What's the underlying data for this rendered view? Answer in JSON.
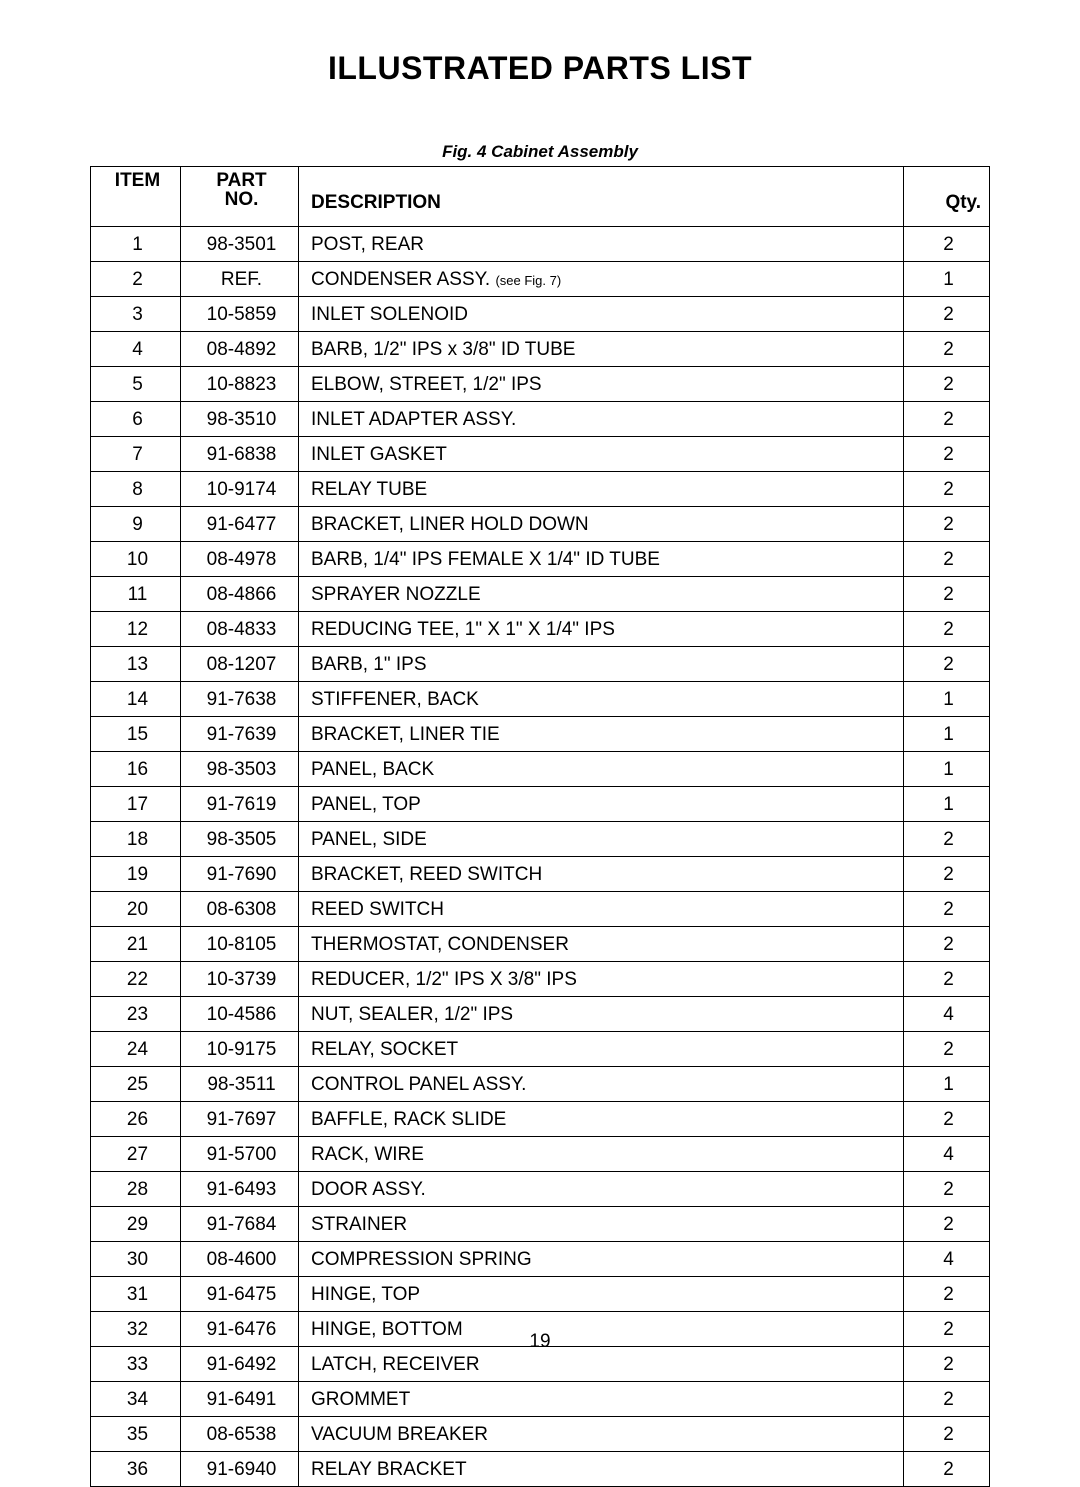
{
  "title": "ILLUSTRATED PARTS LIST",
  "caption": "Fig. 4 Cabinet Assembly",
  "page_number": "19",
  "table": {
    "headers": {
      "item": "ITEM",
      "part_top": "PART",
      "part_bottom": "NO.",
      "description": "DESCRIPTION",
      "qty": "Qty."
    },
    "rows": [
      {
        "item": "1",
        "part": "98-3501",
        "desc": "POST, REAR",
        "qty": "2"
      },
      {
        "item": "2",
        "part": "REF.",
        "desc": "CONDENSER ASSY. ",
        "desc_note": "(see Fig. 7)",
        "qty": "1"
      },
      {
        "item": "3",
        "part": "10-5859",
        "desc": "INLET SOLENOID",
        "qty": "2"
      },
      {
        "item": "4",
        "part": "08-4892",
        "desc": "BARB, 1/2\" IPS x 3/8\" ID TUBE",
        "qty": "2"
      },
      {
        "item": "5",
        "part": "10-8823",
        "desc": "ELBOW, STREET, 1/2\" IPS",
        "qty": "2"
      },
      {
        "item": "6",
        "part": "98-3510",
        "desc": "INLET ADAPTER ASSY.",
        "qty": "2"
      },
      {
        "item": "7",
        "part": "91-6838",
        "desc": "INLET GASKET",
        "qty": "2"
      },
      {
        "item": "8",
        "part": "10-9174",
        "desc": "RELAY TUBE",
        "qty": "2"
      },
      {
        "item": "9",
        "part": "91-6477",
        "desc": "BRACKET, LINER HOLD DOWN",
        "qty": "2"
      },
      {
        "item": "10",
        "part": "08-4978",
        "desc": "BARB, 1/4\" IPS FEMALE X 1/4\" ID TUBE",
        "qty": "2"
      },
      {
        "item": "11",
        "part": "08-4866",
        "desc": "SPRAYER NOZZLE",
        "qty": "2"
      },
      {
        "item": "12",
        "part": "08-4833",
        "desc": "REDUCING TEE, 1\" X 1\" X 1/4\" IPS",
        "qty": "2"
      },
      {
        "item": "13",
        "part": "08-1207",
        "desc": "BARB, 1\" IPS",
        "qty": "2"
      },
      {
        "item": "14",
        "part": "91-7638",
        "desc": "STIFFENER, BACK",
        "qty": "1"
      },
      {
        "item": "15",
        "part": "91-7639",
        "desc": "BRACKET, LINER TIE",
        "qty": "1"
      },
      {
        "item": "16",
        "part": "98-3503",
        "desc": "PANEL, BACK",
        "qty": "1"
      },
      {
        "item": "17",
        "part": "91-7619",
        "desc": "PANEL, TOP",
        "qty": "1"
      },
      {
        "item": "18",
        "part": "98-3505",
        "desc": "PANEL, SIDE",
        "qty": "2"
      },
      {
        "item": "19",
        "part": "91-7690",
        "desc": "BRACKET, REED SWITCH",
        "qty": "2"
      },
      {
        "item": "20",
        "part": "08-6308",
        "desc": "REED SWITCH",
        "qty": "2"
      },
      {
        "item": "21",
        "part": "10-8105",
        "desc": "THERMOSTAT, CONDENSER",
        "qty": "2"
      },
      {
        "item": "22",
        "part": "10-3739",
        "desc": "REDUCER, 1/2\" IPS X 3/8\" IPS",
        "qty": "2"
      },
      {
        "item": "23",
        "part": "10-4586",
        "desc": "NUT, SEALER, 1/2\" IPS",
        "qty": "4"
      },
      {
        "item": "24",
        "part": "10-9175",
        "desc": "RELAY, SOCKET",
        "qty": "2"
      },
      {
        "item": "25",
        "part": "98-3511",
        "desc": "CONTROL PANEL ASSY.",
        "qty": "1"
      },
      {
        "item": "26",
        "part": "91-7697",
        "desc": "BAFFLE, RACK SLIDE",
        "qty": "2"
      },
      {
        "item": "27",
        "part": "91-5700",
        "desc": "RACK, WIRE",
        "qty": "4"
      },
      {
        "item": "28",
        "part": "91-6493",
        "desc": "DOOR ASSY.",
        "qty": "2"
      },
      {
        "item": "29",
        "part": "91-7684",
        "desc": "STRAINER",
        "qty": "2"
      },
      {
        "item": "30",
        "part": "08-4600",
        "desc": "COMPRESSION SPRING",
        "qty": "4"
      },
      {
        "item": "31",
        "part": "91-6475",
        "desc": "HINGE, TOP",
        "qty": "2"
      },
      {
        "item": "32",
        "part": "91-6476",
        "desc": "HINGE, BOTTOM",
        "qty": "2"
      },
      {
        "item": "33",
        "part": "91-6492",
        "desc": "LATCH, RECEIVER",
        "qty": "2"
      },
      {
        "item": "34",
        "part": "91-6491",
        "desc": "GROMMET",
        "qty": "2"
      },
      {
        "item": "35",
        "part": "08-6538",
        "desc": "VACUUM BREAKER",
        "qty": "2"
      },
      {
        "item": "36",
        "part": "91-6940",
        "desc": "RELAY BRACKET",
        "qty": "2"
      }
    ]
  }
}
